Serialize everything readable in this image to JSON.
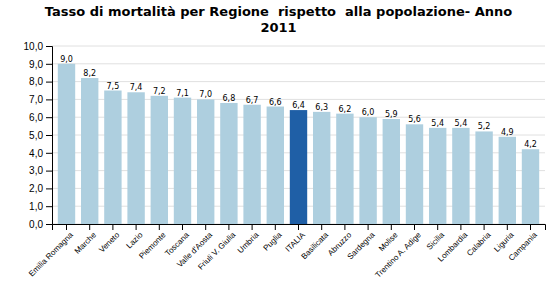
{
  "chart_data": {
    "type": "bar",
    "title": "Tasso di mortalità per Regione  rispetto  alla popolazione- Anno\n2011",
    "categories": [
      "Emilia Romagna",
      "Marche",
      "Veneto",
      "Lazio",
      "Piemonte",
      "Toscana",
      "Valle d'Aosta",
      "Friuli V. Giulia",
      "Umbria",
      "Puglia",
      "ITALIA",
      "Basilicata",
      "Abruzzo",
      "Sardegna",
      "Molise",
      "Trentino A. Adige",
      "Sicilia",
      "Lombardia",
      "Calabria",
      "Liguria",
      "Campania"
    ],
    "values": [
      9.0,
      8.2,
      7.5,
      7.4,
      7.2,
      7.1,
      7.0,
      6.8,
      6.7,
      6.6,
      6.4,
      6.3,
      6.2,
      6.0,
      5.9,
      5.6,
      5.4,
      5.4,
      5.2,
      4.9,
      4.2
    ],
    "value_labels": [
      "9,0",
      "8,2",
      "7,5",
      "7,4",
      "7,2",
      "7,1",
      "7,0",
      "6,8",
      "6,7",
      "6,6",
      "6,4",
      "6,3",
      "6,2",
      "6,0",
      "5,9",
      "5,6",
      "5,4",
      "5,4",
      "5,2",
      "4,9",
      "4,2"
    ],
    "colors": [
      "#aecfdf",
      "#aecfdf",
      "#aecfdf",
      "#aecfdf",
      "#aecfdf",
      "#aecfdf",
      "#aecfdf",
      "#aecfdf",
      "#aecfdf",
      "#aecfdf",
      "#1f5fa6",
      "#aecfdf",
      "#aecfdf",
      "#aecfdf",
      "#aecfdf",
      "#aecfdf",
      "#aecfdf",
      "#aecfdf",
      "#aecfdf",
      "#aecfdf",
      "#aecfdf"
    ],
    "ylim": [
      0.0,
      10.0
    ],
    "yticks": [
      {
        "value": 0.0,
        "label": "0,0"
      },
      {
        "value": 1.0,
        "label": "1,0"
      },
      {
        "value": 2.0,
        "label": "2,0"
      },
      {
        "value": 3.0,
        "label": "3,0"
      },
      {
        "value": 4.0,
        "label": "4,0"
      },
      {
        "value": 5.0,
        "label": "5,0"
      },
      {
        "value": 6.0,
        "label": "6,0"
      },
      {
        "value": 7.0,
        "label": "7,0"
      },
      {
        "value": 8.0,
        "label": "8,0"
      },
      {
        "value": 9.0,
        "label": "9,0"
      },
      {
        "value": 10.0,
        "label": "10,0"
      }
    ],
    "grid": true,
    "data_labels": true
  }
}
